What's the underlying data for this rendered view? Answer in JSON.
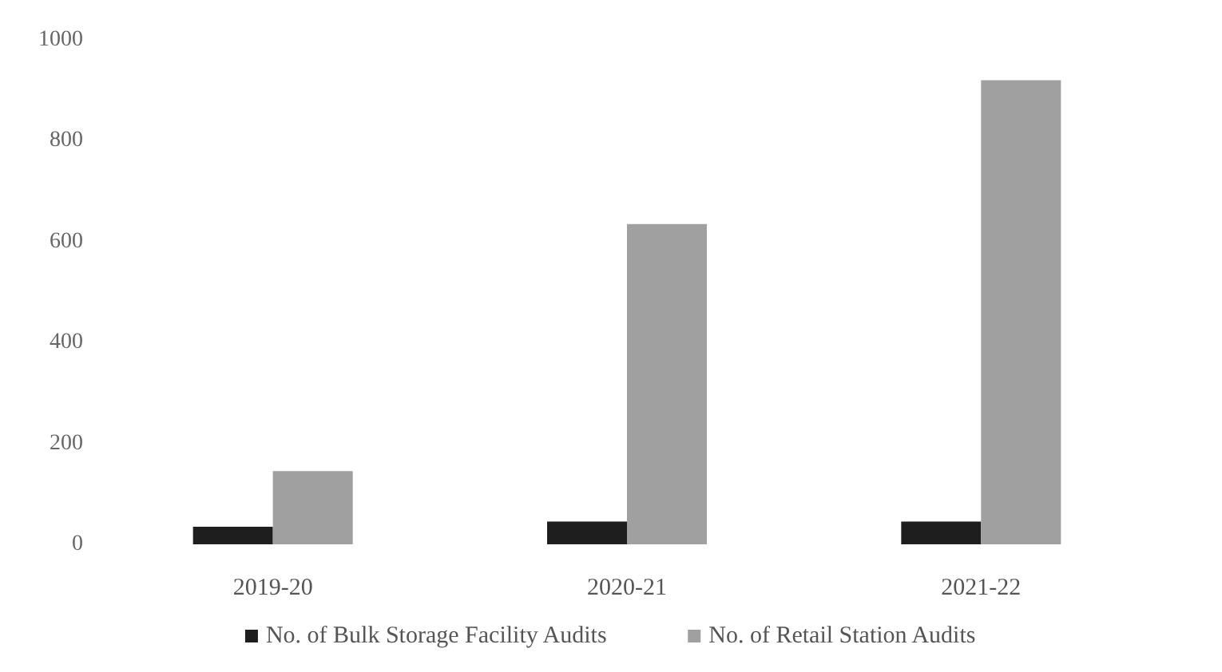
{
  "chart_data": {
    "type": "bar",
    "categories": [
      "2019-20",
      "2020-21",
      "2021-22"
    ],
    "series": [
      {
        "name": "No. of Bulk Storage Facility Audits",
        "color": "#1e1e1e",
        "values": [
          35,
          45,
          45
        ]
      },
      {
        "name": "No. of Retail Station Audits",
        "color": "#a0a0a0",
        "values": [
          145,
          635,
          920
        ]
      }
    ],
    "ylim": [
      0,
      1000
    ],
    "yticks": [
      0,
      200,
      400,
      600,
      800,
      1000
    ],
    "grid": false,
    "legend": "bottom"
  }
}
